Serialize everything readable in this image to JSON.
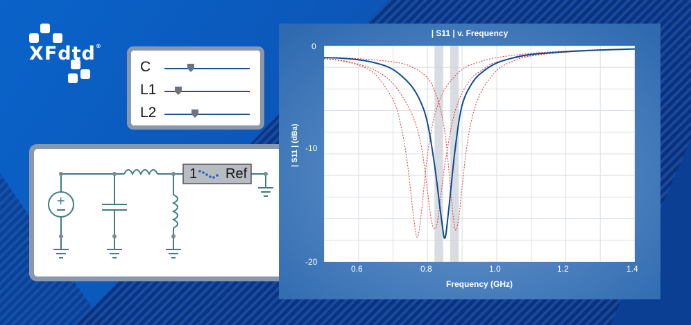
{
  "brand": {
    "logo_text": "XFdtd",
    "registered": "®"
  },
  "controls": {
    "sliders": [
      {
        "label": "C",
        "level": 0.31
      },
      {
        "label": "L1",
        "level": 0.16
      },
      {
        "label": "L2",
        "level": 0.36
      }
    ]
  },
  "circuit": {
    "port_number": "1",
    "port_label": "Ref"
  },
  "chart_data": {
    "type": "line",
    "title": "| S11 | v. Frequency",
    "xlabel": "Frequency (GHz)",
    "ylabel": "| S11 | (dBa)",
    "xlim": [
      0.5,
      1.4
    ],
    "ylim": [
      -20,
      0
    ],
    "xticks": [
      "0.6",
      "0.8",
      "1.0",
      "1.2",
      "1.4"
    ],
    "yticks": [
      "0",
      "-10",
      "-20"
    ],
    "grid": true,
    "highlight_bands": [
      [
        0.82,
        0.845
      ],
      [
        0.865,
        0.89
      ]
    ],
    "series": [
      {
        "style": "solid",
        "color": "#0d4a8c",
        "resonance": 0.85,
        "min_db": -17.8,
        "x": [
          0.5,
          0.55,
          0.6,
          0.65,
          0.7,
          0.75,
          0.78,
          0.8,
          0.82,
          0.84,
          0.85,
          0.86,
          0.88,
          0.9,
          0.93,
          0.96,
          1.0,
          1.05,
          1.1,
          1.2,
          1.3,
          1.4
        ],
        "y": [
          -1.1,
          -1.15,
          -1.3,
          -1.6,
          -2.2,
          -3.6,
          -5.2,
          -7.2,
          -11,
          -16,
          -17.8,
          -15.5,
          -9.5,
          -5.5,
          -3.4,
          -2.4,
          -1.6,
          -1.1,
          -0.8,
          -0.55,
          -0.4,
          -0.3
        ]
      },
      {
        "style": "dotted",
        "color": "#e0302a",
        "resonance": 0.77,
        "min_db": -17.7,
        "x": [
          0.5,
          0.55,
          0.6,
          0.65,
          0.7,
          0.72,
          0.74,
          0.76,
          0.77,
          0.78,
          0.8,
          0.82,
          0.85,
          0.9,
          0.95,
          1.0,
          1.1,
          1.2,
          1.3,
          1.4
        ],
        "y": [
          -1.2,
          -1.4,
          -1.8,
          -2.7,
          -5,
          -7,
          -10.5,
          -16,
          -17.7,
          -16,
          -10,
          -6.5,
          -4,
          -2.2,
          -1.5,
          -1.1,
          -0.7,
          -0.5,
          -0.35,
          -0.3
        ]
      },
      {
        "style": "dotted",
        "color": "#e0302a",
        "resonance": 0.82,
        "min_db": -16.9,
        "x": [
          0.5,
          0.55,
          0.6,
          0.65,
          0.7,
          0.75,
          0.78,
          0.8,
          0.81,
          0.82,
          0.83,
          0.85,
          0.88,
          0.92,
          0.96,
          1.0,
          1.1,
          1.2,
          1.3,
          1.4
        ],
        "y": [
          -1.2,
          -1.35,
          -1.7,
          -2.3,
          -3.5,
          -6,
          -9,
          -13.5,
          -16,
          -16.9,
          -16,
          -11,
          -6,
          -3.3,
          -2.2,
          -1.5,
          -0.9,
          -0.55,
          -0.4,
          -0.3
        ]
      },
      {
        "style": "dotted",
        "color": "#e0302a",
        "resonance": 0.88,
        "min_db": -17.0,
        "x": [
          0.5,
          0.6,
          0.7,
          0.75,
          0.8,
          0.83,
          0.85,
          0.86,
          0.87,
          0.88,
          0.89,
          0.9,
          0.92,
          0.95,
          1.0,
          1.05,
          1.1,
          1.2,
          1.3,
          1.4
        ],
        "y": [
          -1.1,
          -1.2,
          -1.5,
          -1.9,
          -3,
          -5,
          -8,
          -11,
          -14.5,
          -17,
          -16,
          -13,
          -8,
          -4.6,
          -2.3,
          -1.4,
          -0.95,
          -0.6,
          -0.4,
          -0.3
        ]
      }
    ]
  }
}
